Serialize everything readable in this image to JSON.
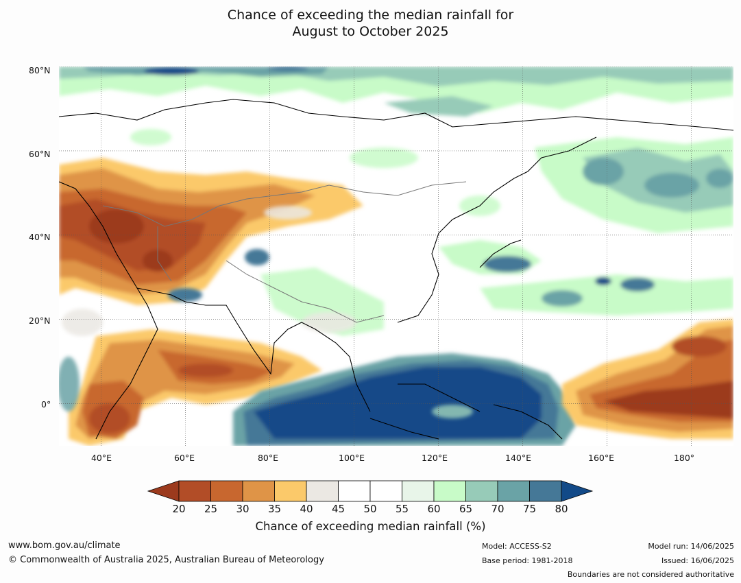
{
  "title": {
    "line1": "Chance of exceeding the median rainfall for",
    "line2": "August to October 2025"
  },
  "map": {
    "lat_labels": [
      "80°N",
      "60°N",
      "40°N",
      "20°N",
      "0°"
    ],
    "lon_labels": [
      "40°E",
      "60°E",
      "80°E",
      "100°E",
      "120°E",
      "140°E",
      "160°E",
      "180°"
    ],
    "lat_values": [
      80,
      60,
      40,
      20,
      0
    ],
    "lon_values": [
      40,
      60,
      80,
      100,
      120,
      140,
      160,
      180
    ],
    "extent": {
      "lon_min": 30,
      "lon_max": 190,
      "lat_min": -10,
      "lat_max": 80
    }
  },
  "colorbar": {
    "ticks": [
      "20",
      "25",
      "30",
      "35",
      "40",
      "45",
      "50",
      "55",
      "60",
      "65",
      "70",
      "75",
      "80"
    ],
    "colors": [
      "#9c3a1d",
      "#b24d27",
      "#c8672f",
      "#df9447",
      "#fbc96a",
      "#ebe8e3",
      "#ffffff",
      "#ffffff",
      "#e8f5e9",
      "#c8fbc8",
      "#97cbb8",
      "#6aa3a6",
      "#457897",
      "#124a88"
    ],
    "label": "Chance of exceeding median rainfall (%)"
  },
  "footer": {
    "website": "www.bom.gov.au/climate",
    "copyright": "© Commonwealth of Australia 2025, Australian Bureau of Meteorology",
    "model": "Model: ACCESS-S2",
    "base_period": "Base period: 1981-2018",
    "model_run": "Model run: 14/06/2025",
    "issued": "Issued: 16/06/2025",
    "disclaimer": "Boundaries are not considered authoritative"
  }
}
